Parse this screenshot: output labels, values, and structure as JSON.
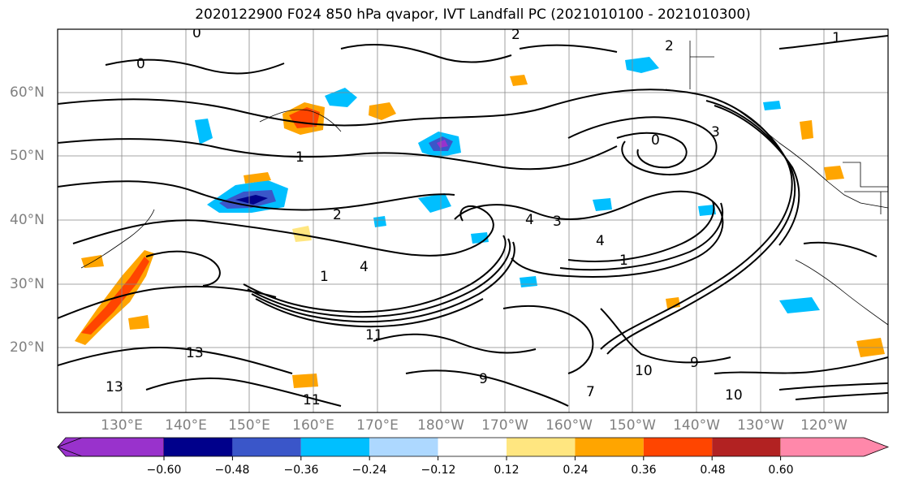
{
  "title": "2020122900 F024 850 hPa qvapor, IVT Landfall PC (2021010100 - 2021010300)",
  "lat_labels": [
    "60°N",
    "50°N",
    "40°N",
    "30°N",
    "20°N"
  ],
  "lon_labels": [
    "130°E",
    "140°E",
    "150°E",
    "160°E",
    "170°E",
    "180°W",
    "170°W",
    "160°W",
    "150°W",
    "140°W",
    "130°W",
    "120°W"
  ],
  "colorbar": {
    "colors": [
      "#9932cc",
      "#00008b",
      "#3a56c9",
      "#00bfff",
      "#add8ff",
      "#ffffff",
      "#ffe680",
      "#ffa500",
      "#ff4500",
      "#b22222",
      "#ff88aa"
    ],
    "tick_labels": [
      "−0.60",
      "−0.48",
      "−0.36",
      "−0.24",
      "−0.12",
      "0.12",
      "0.24",
      "0.36",
      "0.48",
      "0.60"
    ]
  },
  "contour_labels": [
    "0",
    "1",
    "2",
    "3",
    "4",
    "7",
    "9",
    "10",
    "11",
    "13"
  ]
}
